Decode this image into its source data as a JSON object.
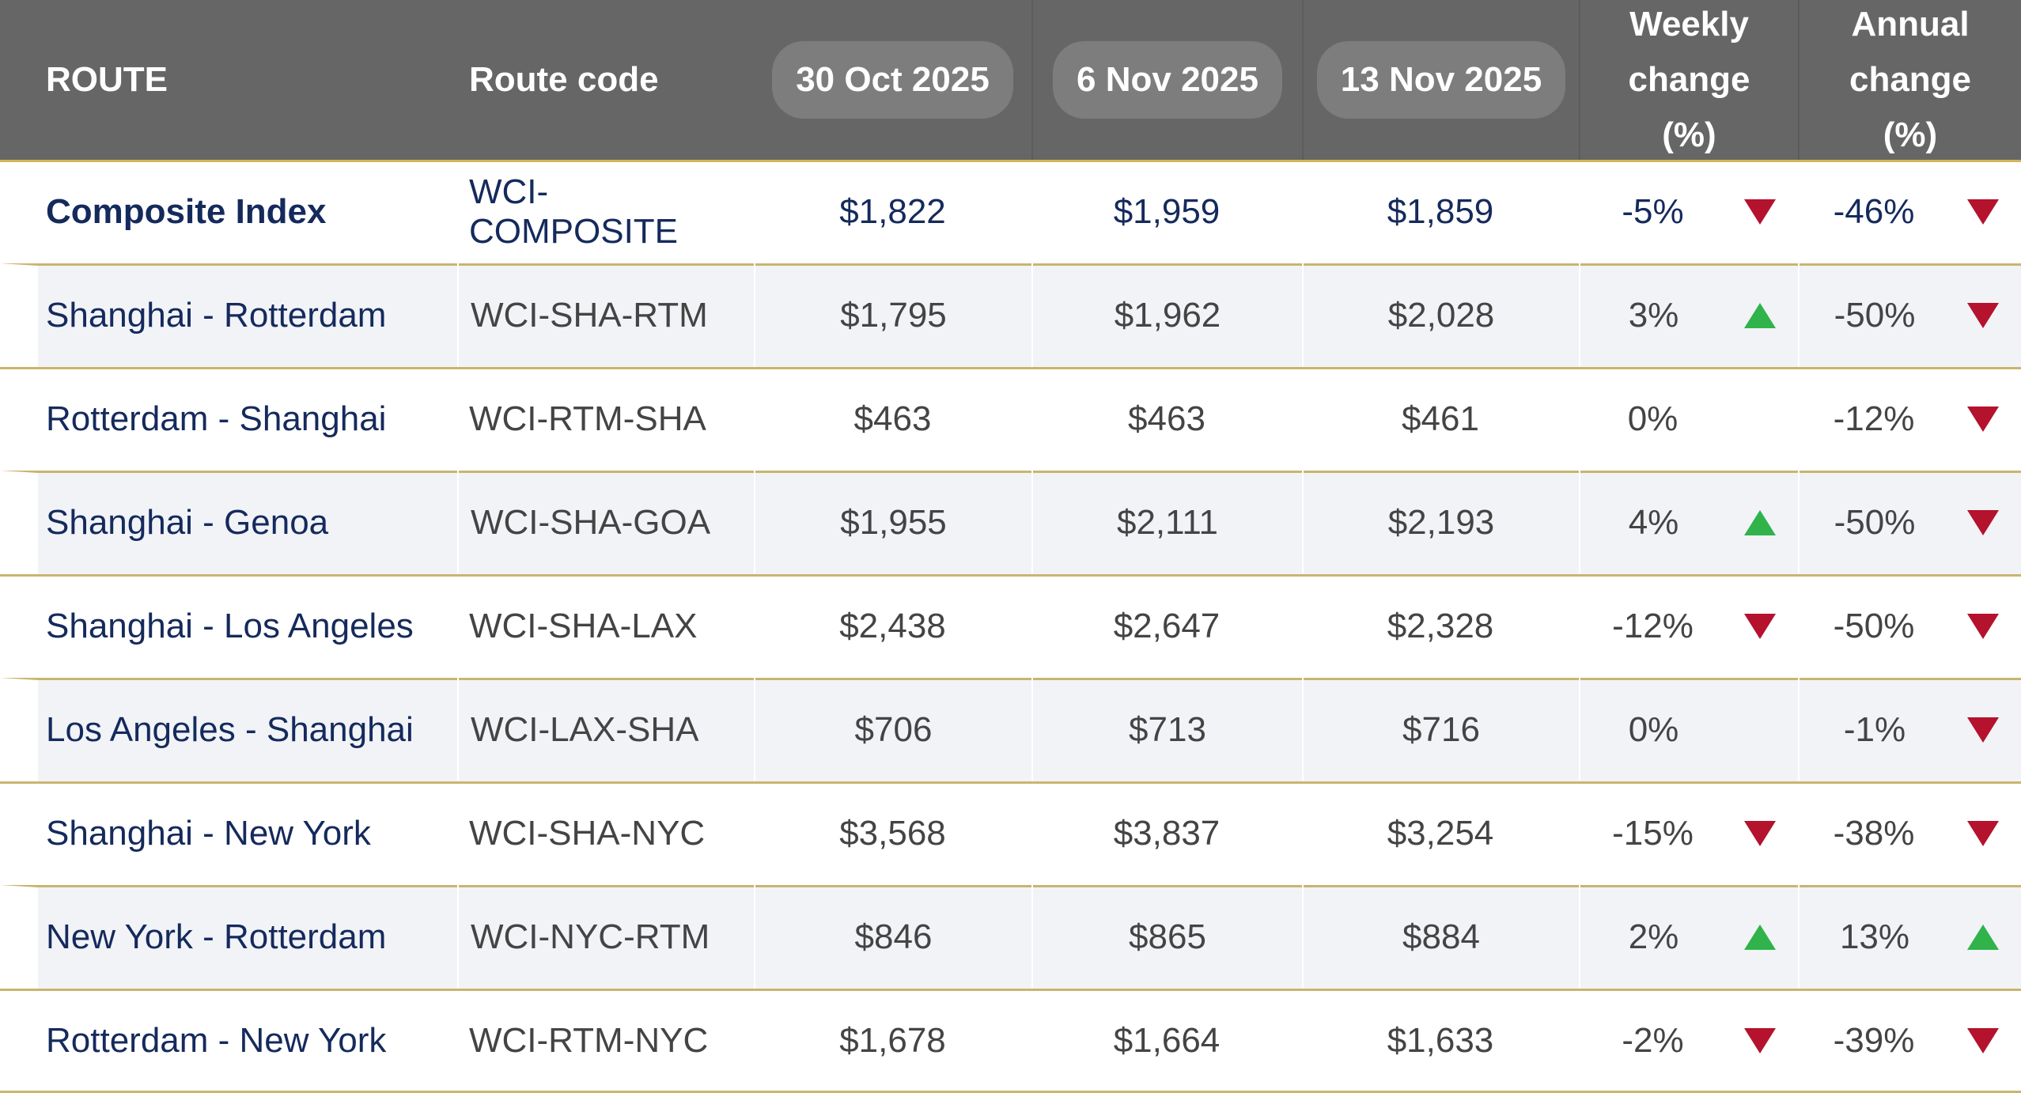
{
  "table": {
    "header": [
      "ROUTE",
      "Route code",
      "30 Oct 2025",
      "6 Nov 2025",
      "13 Nov 2025",
      "Weekly change (%)",
      "Annual change (%)"
    ],
    "rows": [
      {
        "route": "Composite Index",
        "code": "WCI-COMPOSITE",
        "v1": "$1,822",
        "v2": "$1,959",
        "v3": "$1,859",
        "weekly": "-5%",
        "weekly_trend": "down",
        "annual": "-46%",
        "annual_trend": "down"
      },
      {
        "route": "Shanghai - Rotterdam",
        "code": "WCI-SHA-RTM",
        "v1": "$1,795",
        "v2": "$1,962",
        "v3": "$2,028",
        "weekly": "3%",
        "weekly_trend": "up",
        "annual": "-50%",
        "annual_trend": "down"
      },
      {
        "route": "Rotterdam - Shanghai",
        "code": "WCI-RTM-SHA",
        "v1": "$463",
        "v2": "$463",
        "v3": "$461",
        "weekly": "0%",
        "weekly_trend": null,
        "annual": "-12%",
        "annual_trend": "down"
      },
      {
        "route": "Shanghai - Genoa",
        "code": "WCI-SHA-GOA",
        "v1": "$1,955",
        "v2": "$2,111",
        "v3": "$2,193",
        "weekly": "4%",
        "weekly_trend": "up",
        "annual": "-50%",
        "annual_trend": "down"
      },
      {
        "route": "Shanghai - Los Angeles",
        "code": "WCI-SHA-LAX",
        "v1": "$2,438",
        "v2": "$2,647",
        "v3": "$2,328",
        "weekly": "-12%",
        "weekly_trend": "down",
        "annual": "-50%",
        "annual_trend": "down"
      },
      {
        "route": "Los Angeles - Shanghai",
        "code": "WCI-LAX-SHA",
        "v1": "$706",
        "v2": "$713",
        "v3": "$716",
        "weekly": "0%",
        "weekly_trend": null,
        "annual": "-1%",
        "annual_trend": "down"
      },
      {
        "route": "Shanghai - New York",
        "code": "WCI-SHA-NYC",
        "v1": "$3,568",
        "v2": "$3,837",
        "v3": "$3,254",
        "weekly": "-15%",
        "weekly_trend": "down",
        "annual": "-38%",
        "annual_trend": "down"
      },
      {
        "route": "New York - Rotterdam",
        "code": "WCI-NYC-RTM",
        "v1": "$846",
        "v2": "$865",
        "v3": "$884",
        "weekly": "2%",
        "weekly_trend": "up",
        "annual": "13%",
        "annual_trend": "up"
      },
      {
        "route": "Rotterdam - New York",
        "code": "WCI-RTM-NYC",
        "v1": "$1,678",
        "v2": "$1,664",
        "v3": "$1,633",
        "weekly": "-2%",
        "weekly_trend": "down",
        "annual": "-39%",
        "annual_trend": "down"
      }
    ]
  }
}
